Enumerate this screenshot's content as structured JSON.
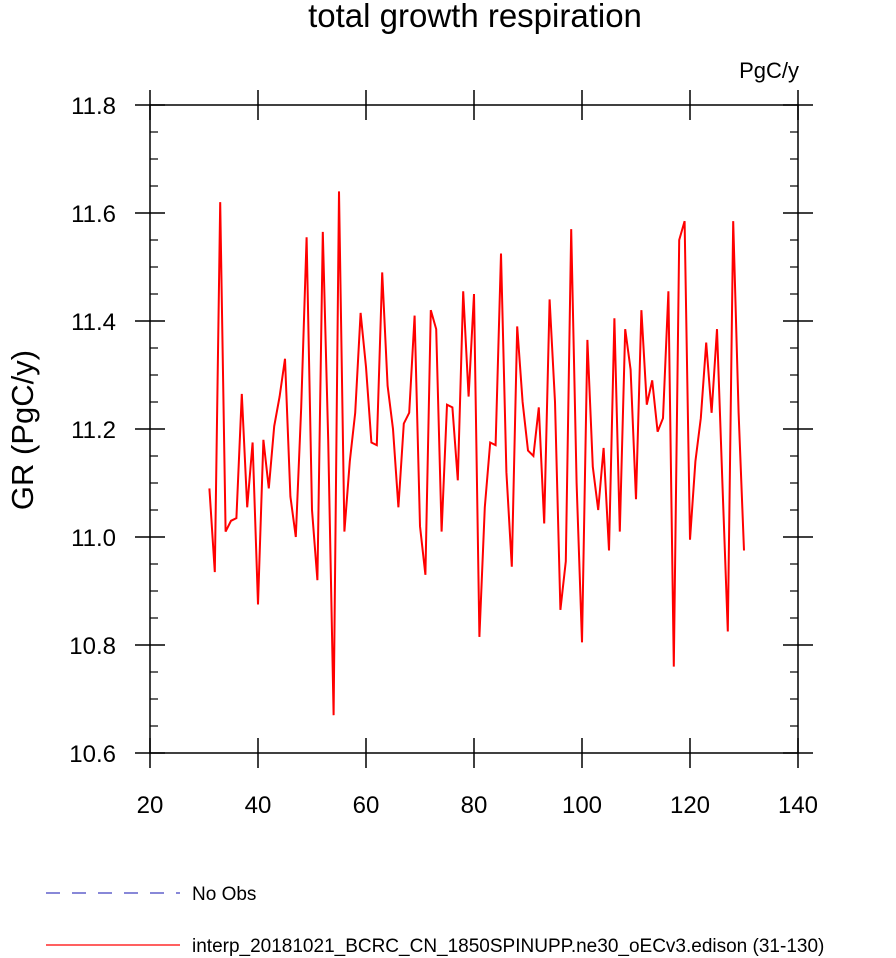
{
  "chart_data": {
    "type": "line",
    "title": "total growth respiration",
    "units": "PgC/y",
    "ylabel": "GR  (PgC/y)",
    "xlabel": "",
    "xlim": [
      20,
      140
    ],
    "ylim": [
      10.6,
      11.8
    ],
    "x_ticks": [
      20,
      40,
      60,
      80,
      100,
      120,
      140
    ],
    "x_tick_labels": [
      "20",
      "40",
      "60",
      "80",
      "100",
      "120",
      "140"
    ],
    "y_ticks": [
      10.6,
      10.8,
      11.0,
      11.2,
      11.4,
      11.6,
      11.8
    ],
    "y_tick_labels": [
      "10.6",
      "10.8",
      "11.0",
      "11.2",
      "11.4",
      "11.6",
      "11.8"
    ],
    "grid": false,
    "legend_position": "bottom",
    "legend": [
      {
        "label": "No Obs",
        "color": "#4040c0",
        "style": "dashed"
      },
      {
        "label": "interp_20181021_BCRC_CN_1850SPINUPP.ne30_oECv3.edison (31-130)",
        "color": "#ff0000",
        "style": "solid"
      }
    ],
    "series": [
      {
        "name": "interp_20181021_BCRC_CN_1850SPINUPP.ne30_oECv3.edison (31-130)",
        "color": "#ff0000",
        "x": [
          31,
          32,
          33,
          34,
          35,
          36,
          37,
          38,
          39,
          40,
          41,
          42,
          43,
          44,
          45,
          46,
          47,
          48,
          49,
          50,
          51,
          52,
          53,
          54,
          55,
          56,
          57,
          58,
          59,
          60,
          61,
          62,
          63,
          64,
          65,
          66,
          67,
          68,
          69,
          70,
          71,
          72,
          73,
          74,
          75,
          76,
          77,
          78,
          79,
          80,
          81,
          82,
          83,
          84,
          85,
          86,
          87,
          88,
          89,
          90,
          91,
          92,
          93,
          94,
          95,
          96,
          97,
          98,
          99,
          100,
          101,
          102,
          103,
          104,
          105,
          106,
          107,
          108,
          109,
          110,
          111,
          112,
          113,
          114,
          115,
          116,
          117,
          118,
          119,
          120,
          121,
          122,
          123,
          124,
          125,
          126,
          127,
          128,
          129,
          130
        ],
        "y": [
          11.09,
          10.935,
          11.62,
          11.01,
          11.03,
          11.035,
          11.265,
          11.055,
          11.175,
          10.875,
          11.18,
          11.09,
          11.205,
          11.26,
          11.33,
          11.075,
          11.0,
          11.24,
          11.555,
          11.05,
          10.92,
          11.565,
          11.18,
          10.67,
          11.64,
          11.01,
          11.14,
          11.23,
          11.415,
          11.315,
          11.175,
          11.17,
          11.49,
          11.28,
          11.2,
          11.055,
          11.21,
          11.23,
          11.41,
          11.02,
          10.93,
          11.42,
          11.385,
          11.01,
          11.245,
          11.24,
          11.105,
          11.455,
          11.26,
          11.45,
          10.815,
          11.055,
          11.175,
          11.17,
          11.525,
          11.12,
          10.945,
          11.39,
          11.25,
          11.16,
          11.15,
          11.24,
          11.025,
          11.44,
          11.25,
          10.865,
          10.955,
          11.57,
          11.1,
          10.805,
          11.365,
          11.13,
          11.05,
          11.165,
          10.975,
          11.405,
          11.01,
          11.385,
          11.31,
          11.07,
          11.42,
          11.245,
          11.29,
          11.195,
          11.22,
          11.455,
          10.76,
          11.55,
          11.585,
          10.995,
          11.14,
          11.22,
          11.36,
          11.23,
          11.385,
          11.1,
          10.825,
          11.585,
          11.23,
          10.975
        ]
      }
    ]
  }
}
